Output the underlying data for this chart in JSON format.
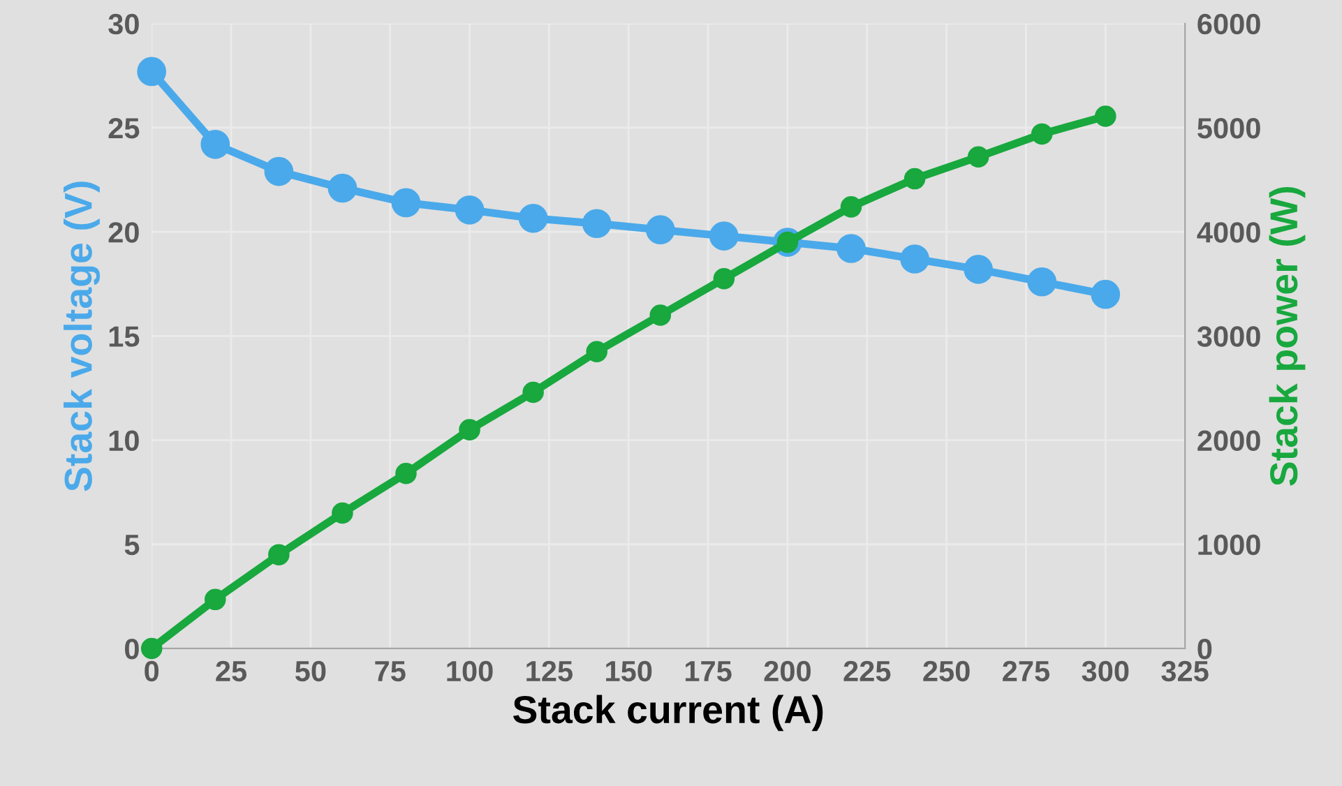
{
  "chart_data": {
    "type": "line",
    "xlabel": "Stack current (A)",
    "ylabel": "Stack voltage (V)",
    "y2label": "Stack power (W)",
    "x": [
      0,
      20,
      40,
      60,
      80,
      100,
      120,
      140,
      160,
      180,
      200,
      220,
      240,
      260,
      280,
      300
    ],
    "series": [
      {
        "color": "#4aa9ea",
        "values": [
          27.7,
          24.2,
          22.9,
          22.1,
          21.4,
          21.05,
          20.65,
          20.4,
          20.1,
          19.8,
          19.5,
          19.2,
          18.7,
          18.2,
          17.6,
          17.0
        ]
      },
      {
        "color": "#18a83e",
        "axis": "y2",
        "values": [
          0,
          470,
          900,
          1300,
          1680,
          2100,
          2460,
          2850,
          3200,
          3550,
          3900,
          4240,
          4510,
          4720,
          4940,
          5110
        ]
      }
    ],
    "xlim": [
      0,
      325
    ],
    "xticks": [
      0,
      25,
      50,
      75,
      100,
      125,
      150,
      175,
      200,
      225,
      250,
      275,
      300,
      325
    ],
    "ylim": [
      0,
      30
    ],
    "yticks": [
      0,
      5,
      10,
      15,
      20,
      25,
      30
    ],
    "y2lim": [
      0,
      6000
    ],
    "y2ticks": [
      0,
      1000,
      2000,
      3000,
      4000,
      5000,
      6000
    ],
    "grid": true,
    "legend": false,
    "marker": "circle",
    "line_style": "solid"
  }
}
